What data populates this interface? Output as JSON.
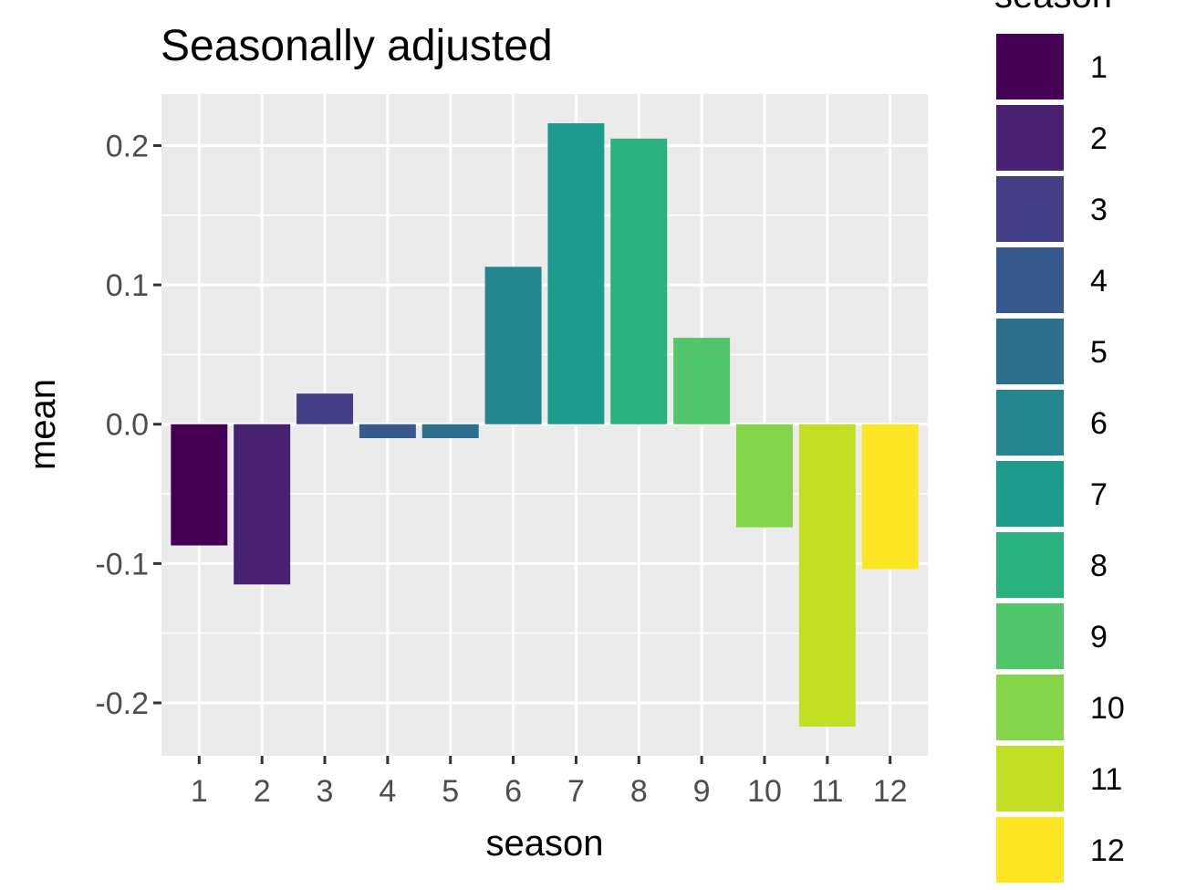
{
  "chart_data": {
    "type": "bar",
    "title": "Seasonally adjusted",
    "xlabel": "season",
    "ylabel": "mean",
    "categories": [
      "1",
      "2",
      "3",
      "4",
      "5",
      "6",
      "7",
      "8",
      "9",
      "10",
      "11",
      "12"
    ],
    "values": [
      -0.087,
      -0.115,
      0.022,
      -0.01,
      -0.01,
      0.113,
      0.216,
      0.205,
      0.062,
      -0.074,
      -0.217,
      -0.104
    ],
    "colors": [
      "#440154",
      "#482173",
      "#433E85",
      "#38598C",
      "#2D708E",
      "#25858E",
      "#1E9B8A",
      "#2BB07F",
      "#51C56A",
      "#85D54A",
      "#C2DF23",
      "#FDE725"
    ],
    "ylim": [
      -0.238,
      0.237
    ],
    "yticks": [
      -0.2,
      -0.1,
      0.0,
      0.1,
      0.2
    ],
    "ytick_labels": [
      "-0.2",
      "-0.1",
      "0.0",
      "0.1",
      "0.2"
    ],
    "grid": true,
    "panel_background": "#EBEBEB",
    "legend": {
      "title": "season",
      "placement": "right",
      "entries": [
        "1",
        "2",
        "3",
        "4",
        "5",
        "6",
        "7",
        "8",
        "9",
        "10",
        "11",
        "12"
      ]
    }
  }
}
